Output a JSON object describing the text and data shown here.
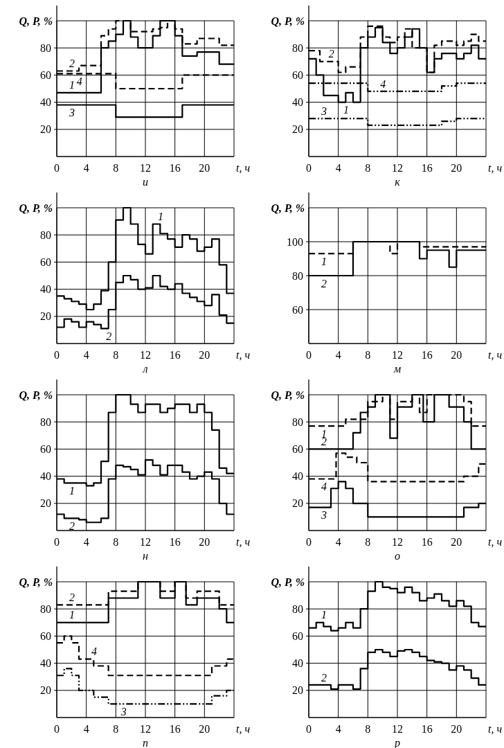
{
  "chart_data": [
    {
      "type": "step",
      "title": "и",
      "xlabel": "t, ч",
      "ylabel": "Q, P, %",
      "xlim": [
        0,
        24
      ],
      "xticks": [
        0,
        4,
        8,
        12,
        16,
        20
      ],
      "ylim": [
        0,
        100
      ],
      "yticks": [
        20,
        40,
        60,
        80
      ],
      "grid": true,
      "series": [
        {
          "name": "1",
          "color": "#000000",
          "line_style": "solid",
          "x": [
            0,
            6,
            7,
            8,
            9,
            10,
            11,
            13,
            14,
            16,
            17,
            19,
            22,
            24
          ],
          "values": [
            47,
            80,
            85,
            90,
            100,
            88,
            80,
            89,
            100,
            89,
            74,
            77,
            68,
            68
          ]
        },
        {
          "name": "2",
          "color": "#000000",
          "line_style": "dashed",
          "x": [
            0,
            3,
            6,
            7,
            8,
            10,
            13,
            14,
            15,
            16,
            17,
            19,
            22,
            24
          ],
          "values": [
            63,
            67,
            89,
            94,
            100,
            92,
            94,
            95,
            100,
            94,
            83,
            87,
            82,
            82
          ]
        },
        {
          "name": "3",
          "color": "#000000",
          "line_style": "solid",
          "x": [
            0,
            8,
            17,
            24
          ],
          "values": [
            38,
            29,
            38,
            38
          ]
        },
        {
          "name": "4",
          "color": "#000000",
          "line_style": "dashed",
          "x": [
            0,
            8,
            17,
            24
          ],
          "values": [
            61,
            50,
            60,
            60
          ]
        }
      ]
    },
    {
      "type": "step",
      "title": "к",
      "xlabel": "t, ч",
      "ylabel": "Q, P, %",
      "xlim": [
        0,
        24
      ],
      "xticks": [
        0,
        4,
        8,
        12,
        16,
        20
      ],
      "ylim": [
        0,
        100
      ],
      "yticks": [
        20,
        40,
        60,
        80
      ],
      "grid": true,
      "series": [
        {
          "name": "1",
          "color": "#000000",
          "line_style": "solid",
          "x": [
            0,
            1,
            2,
            4,
            5,
            6,
            7,
            8,
            9,
            10,
            11,
            12,
            13,
            14,
            15,
            16,
            17,
            18,
            20,
            21,
            22,
            23,
            24
          ],
          "values": [
            72,
            60,
            45,
            40,
            47,
            40,
            80,
            88,
            95,
            84,
            76,
            80,
            88,
            94,
            80,
            62,
            72,
            76,
            72,
            76,
            82,
            72,
            72
          ]
        },
        {
          "name": "2",
          "color": "#000000",
          "line_style": "dashed",
          "x": [
            0,
            1.5,
            4,
            5,
            7,
            8,
            10,
            11,
            12,
            13,
            14,
            16,
            17,
            18,
            20,
            21,
            22,
            23,
            24
          ],
          "values": [
            78,
            70,
            62,
            66,
            88,
            96,
            88,
            84,
            88,
            94,
            80,
            62,
            82,
            85,
            82,
            85,
            90,
            85,
            85
          ]
        },
        {
          "name": "3",
          "color": "#000000",
          "line_style": "dotted",
          "x": [
            0,
            8,
            18,
            20,
            24
          ],
          "values": [
            28,
            23,
            26,
            28,
            28
          ]
        },
        {
          "name": "4",
          "color": "#000000",
          "line_style": "dotted",
          "x": [
            0,
            8,
            18,
            20,
            24
          ],
          "values": [
            54,
            48,
            52,
            54,
            54
          ]
        }
      ]
    },
    {
      "type": "step",
      "title": "л",
      "xlabel": "t, ч",
      "ylabel": "Q, P, %",
      "xlim": [
        0,
        24
      ],
      "xticks": [
        0,
        4,
        8,
        12,
        16,
        20
      ],
      "ylim": [
        0,
        100
      ],
      "yticks": [
        20,
        40,
        60,
        80
      ],
      "grid": true,
      "series": [
        {
          "name": "1",
          "color": "#000000",
          "line_style": "solid",
          "x": [
            0,
            1,
            2,
            3,
            4,
            5,
            6,
            7,
            8,
            9,
            10,
            11,
            12,
            13,
            14,
            15,
            16,
            17,
            18,
            19,
            20,
            21,
            22,
            23,
            24
          ],
          "values": [
            35,
            33,
            31,
            29,
            25,
            29,
            39,
            60,
            91,
            100,
            88,
            73,
            66,
            88,
            81,
            77,
            71,
            80,
            77,
            68,
            71,
            77,
            58,
            37,
            37
          ]
        },
        {
          "name": "2",
          "color": "#000000",
          "line_style": "solid",
          "x": [
            0,
            1,
            2,
            3,
            4,
            5,
            6,
            7,
            8,
            9,
            10,
            11,
            12,
            13,
            14,
            15,
            16,
            17,
            18,
            19,
            20,
            21,
            22,
            23,
            24
          ],
          "values": [
            12,
            18,
            16,
            12,
            16,
            14,
            11,
            25,
            45,
            50,
            47,
            40,
            41,
            50,
            42,
            40,
            44,
            37,
            34,
            31,
            28,
            36,
            21,
            15,
            15
          ]
        }
      ]
    },
    {
      "type": "step",
      "title": "м",
      "xlabel": "t, ч",
      "ylabel": "Q, P, %",
      "xlim": [
        0,
        24
      ],
      "xticks": [
        0,
        4,
        8,
        12,
        16,
        20
      ],
      "ylim": [
        40,
        120
      ],
      "yticks": [
        60,
        80,
        100
      ],
      "grid": true,
      "series": [
        {
          "name": "1",
          "color": "#000000",
          "line_style": "dashed",
          "x": [
            0,
            6,
            11,
            12,
            15,
            24
          ],
          "values": [
            93,
            100,
            93,
            100,
            97,
            97
          ]
        },
        {
          "name": "2",
          "color": "#000000",
          "line_style": "solid",
          "x": [
            0,
            6,
            15,
            16,
            19,
            20,
            24
          ],
          "values": [
            80,
            100,
            90,
            95,
            85,
            95,
            95
          ]
        }
      ]
    },
    {
      "type": "step",
      "title": "н",
      "xlabel": "t, ч",
      "ylabel": "Q, P, %",
      "xlim": [
        0,
        24
      ],
      "xticks": [
        0,
        4,
        8,
        12,
        16,
        20
      ],
      "ylim": [
        0,
        100
      ],
      "yticks": [
        20,
        40,
        60,
        80
      ],
      "grid": true,
      "series": [
        {
          "name": "1",
          "color": "#000000",
          "line_style": "solid",
          "x": [
            0,
            1,
            4,
            5,
            6,
            7,
            8,
            10,
            11,
            12,
            14,
            15,
            16,
            18,
            19,
            20,
            21,
            22,
            23,
            24
          ],
          "values": [
            38,
            35,
            33,
            35,
            51,
            87,
            100,
            93,
            87,
            93,
            87,
            90,
            93,
            87,
            93,
            87,
            74,
            46,
            42,
            42
          ]
        },
        {
          "name": "2",
          "color": "#000000",
          "line_style": "solid",
          "x": [
            0,
            1,
            3,
            4,
            6,
            7,
            8,
            9,
            10,
            11,
            12,
            13,
            14,
            15,
            17,
            18,
            19,
            20,
            21,
            22,
            23,
            24
          ],
          "values": [
            12,
            9,
            8,
            6,
            9,
            38,
            48,
            47,
            45,
            41,
            52,
            48,
            41,
            48,
            43,
            38,
            40,
            43,
            38,
            20,
            12,
            12
          ]
        }
      ]
    },
    {
      "type": "step",
      "title": "о",
      "xlabel": "t, ч",
      "ylabel": "Q, P, %",
      "xlim": [
        0,
        24
      ],
      "xticks": [
        0,
        4,
        8,
        12,
        16,
        20
      ],
      "ylim": [
        0,
        100
      ],
      "yticks": [
        20,
        40,
        60,
        80
      ],
      "grid": true,
      "series": [
        {
          "name": "1",
          "color": "#000000",
          "line_style": "dashed",
          "x": [
            0,
            5,
            8,
            10,
            11,
            12,
            14,
            15,
            16,
            21,
            22,
            24
          ],
          "values": [
            77,
            82,
            95,
            100,
            82,
            95,
            100,
            87,
            100,
            95,
            77,
            77
          ]
        },
        {
          "name": "2",
          "color": "#000000",
          "line_style": "solid",
          "x": [
            0,
            6,
            7,
            8,
            9,
            11,
            12,
            14,
            15.5,
            17,
            19,
            21,
            22,
            24
          ],
          "values": [
            60,
            72,
            87,
            91,
            100,
            68,
            91,
            100,
            80,
            100,
            91,
            80,
            60,
            60
          ]
        },
        {
          "name": "3",
          "color": "#000000",
          "line_style": "solid",
          "x": [
            0,
            3,
            4,
            5,
            6,
            8,
            21,
            23,
            24
          ],
          "values": [
            17,
            31,
            36,
            31,
            20,
            10,
            17,
            20,
            20
          ]
        },
        {
          "name": "4",
          "color": "#000000",
          "line_style": "dashed",
          "x": [
            0,
            3.7,
            5,
            6.5,
            8,
            21,
            23,
            24
          ],
          "values": [
            38,
            57,
            54,
            50,
            36,
            40,
            49,
            49
          ]
        }
      ]
    },
    {
      "type": "step",
      "title": "п",
      "xlabel": "t, ч",
      "ylabel": "Q, P, %",
      "xlim": [
        0,
        24
      ],
      "xticks": [
        0,
        4,
        8,
        12,
        16,
        20
      ],
      "ylim": [
        0,
        100
      ],
      "yticks": [
        20,
        40,
        60,
        80
      ],
      "grid": true,
      "series": [
        {
          "name": "1",
          "color": "#000000",
          "line_style": "solid",
          "x": [
            0,
            7,
            11,
            14,
            16,
            17.5,
            19,
            22,
            23,
            24
          ],
          "values": [
            70,
            88,
            100,
            88,
            100,
            83,
            88,
            80,
            70,
            70
          ]
        },
        {
          "name": "2",
          "color": "#000000",
          "line_style": "dashed",
          "x": [
            0,
            7,
            11,
            14,
            16,
            17.5,
            19,
            22,
            24
          ],
          "values": [
            83,
            93,
            100,
            93,
            100,
            88,
            93,
            83,
            83
          ]
        },
        {
          "name": "3",
          "color": "#000000",
          "line_style": "dotted",
          "x": [
            0,
            1,
            2,
            3,
            5,
            7,
            21,
            23,
            24
          ],
          "values": [
            31,
            36,
            31,
            20,
            15,
            10,
            16,
            20,
            20
          ]
        },
        {
          "name": "4",
          "color": "#000000",
          "line_style": "dashed",
          "x": [
            0,
            1,
            2,
            3,
            5,
            7,
            21,
            23,
            24
          ],
          "values": [
            55,
            60,
            55,
            43,
            38,
            31,
            38,
            43,
            43
          ]
        }
      ]
    },
    {
      "type": "step",
      "title": "р",
      "xlabel": "t, ч",
      "ylabel": "Q, P, %",
      "xlim": [
        0,
        24
      ],
      "xticks": [
        0,
        4,
        8,
        12,
        16,
        20
      ],
      "ylim": [
        0,
        100
      ],
      "yticks": [
        20,
        40,
        60,
        80
      ],
      "grid": true,
      "series": [
        {
          "name": "1",
          "color": "#000000",
          "line_style": "solid",
          "x": [
            0,
            1,
            2,
            3,
            4,
            5,
            6,
            7,
            8,
            9,
            10,
            11,
            12,
            13,
            14,
            15,
            16,
            17,
            18,
            19,
            20,
            21,
            22,
            23,
            24
          ],
          "values": [
            66,
            70,
            67,
            64,
            66,
            70,
            66,
            80,
            93,
            100,
            96,
            95,
            92,
            96,
            92,
            86,
            88,
            91,
            86,
            82,
            86,
            82,
            70,
            67,
            67
          ]
        },
        {
          "name": "2",
          "color": "#000000",
          "line_style": "solid",
          "x": [
            0,
            1,
            2,
            3,
            4,
            5,
            6,
            7,
            8,
            9,
            10,
            11,
            12,
            13,
            14,
            15,
            16,
            17,
            18,
            19,
            20,
            21,
            22,
            23,
            24
          ],
          "values": [
            24,
            24,
            24,
            21,
            24,
            24,
            21,
            36,
            48,
            50,
            48,
            45,
            49,
            50,
            48,
            45,
            42,
            41,
            40,
            35,
            38,
            35,
            29,
            24,
            24
          ]
        }
      ]
    }
  ]
}
